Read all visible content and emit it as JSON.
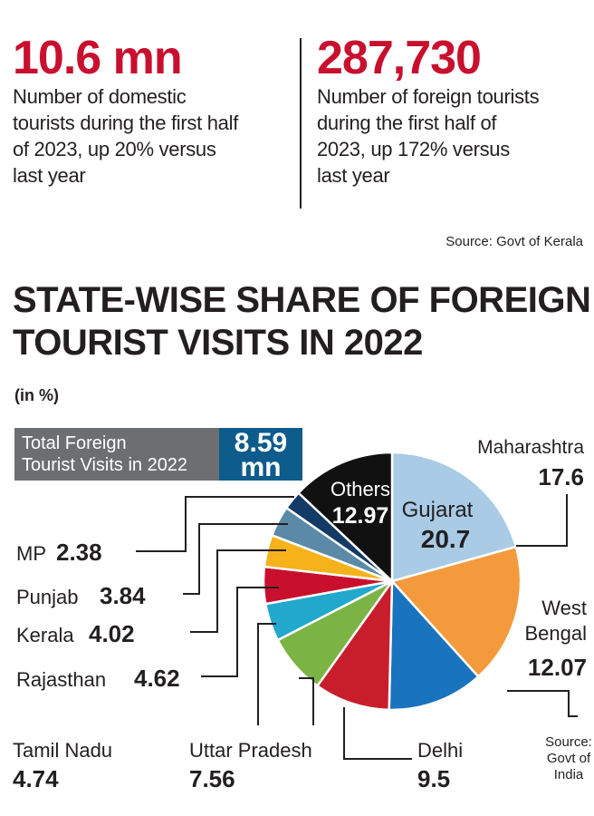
{
  "stats": [
    {
      "value": "10.6 mn",
      "description": [
        "Number of domestic",
        "tourists during the first half",
        "of 2023, up 20% versus",
        "last year"
      ]
    },
    {
      "value": "287,730",
      "description": [
        "Number of foreign tourists",
        "during the first half of",
        "2023, up 172% versus",
        "last year"
      ]
    }
  ],
  "source_top": "Source: Govt of Kerala",
  "chart_data": {
    "type": "pie",
    "title": "STATE-WISE SHARE OF FOREIGN TOURIST VISITS IN 2022",
    "title_lines": [
      "STATE-WISE SHARE OF FOREIGN",
      "TOURIST VISITS IN 2022"
    ],
    "unit": "(in %)",
    "total_label": [
      "Total Foreign",
      "Tourist Visits in 2022"
    ],
    "total_value": [
      "8.59",
      "mn"
    ],
    "slices": [
      {
        "name": "Gujarat",
        "value": 20.7,
        "color": "#a9cbe5"
      },
      {
        "name": "Maharashtra",
        "value": 17.6,
        "color": "#f39a3c"
      },
      {
        "name": "West Bengal",
        "value": 12.07,
        "color": "#1a73bd"
      },
      {
        "name": "Delhi",
        "value": 9.5,
        "color": "#c81e2c"
      },
      {
        "name": "Uttar Pradesh",
        "value": 7.56,
        "color": "#7bb345"
      },
      {
        "name": "Tamil Nadu",
        "value": 4.74,
        "color": "#21a8cc"
      },
      {
        "name": "Rajasthan",
        "value": 4.62,
        "color": "#c8102e"
      },
      {
        "name": "Kerala",
        "value": 4.02,
        "color": "#f6b21b"
      },
      {
        "name": "Punjab",
        "value": 3.84,
        "color": "#5a8aa8"
      },
      {
        "name": "MP",
        "value": 2.38,
        "color": "#143a66"
      },
      {
        "name": "Others",
        "value": 12.97,
        "color": "#111111"
      }
    ],
    "labels": {
      "maharashtra": {
        "name": "Maharashtra",
        "value": "17.6"
      },
      "west_bengal": {
        "name": [
          "West",
          "Bengal"
        ],
        "value": "12.07"
      },
      "delhi": {
        "name": "Delhi",
        "value": "9.5"
      },
      "uttar_pradesh": {
        "name": "Uttar Pradesh",
        "value": "7.56"
      },
      "tamil_nadu": {
        "name": "Tamil Nadu",
        "value": "4.74"
      },
      "rajasthan": {
        "name": "Rajasthan",
        "value": "4.62"
      },
      "kerala": {
        "name": "Kerala",
        "value": "4.02"
      },
      "punjab": {
        "name": "Punjab",
        "value": "3.84"
      },
      "mp": {
        "name": "MP",
        "value": "2.38"
      },
      "gujarat": {
        "name": "Gujarat",
        "value": "20.7"
      },
      "others": {
        "name": "Others",
        "value": "12.97"
      }
    },
    "source": [
      "Source:",
      "Govt of",
      "India"
    ]
  }
}
